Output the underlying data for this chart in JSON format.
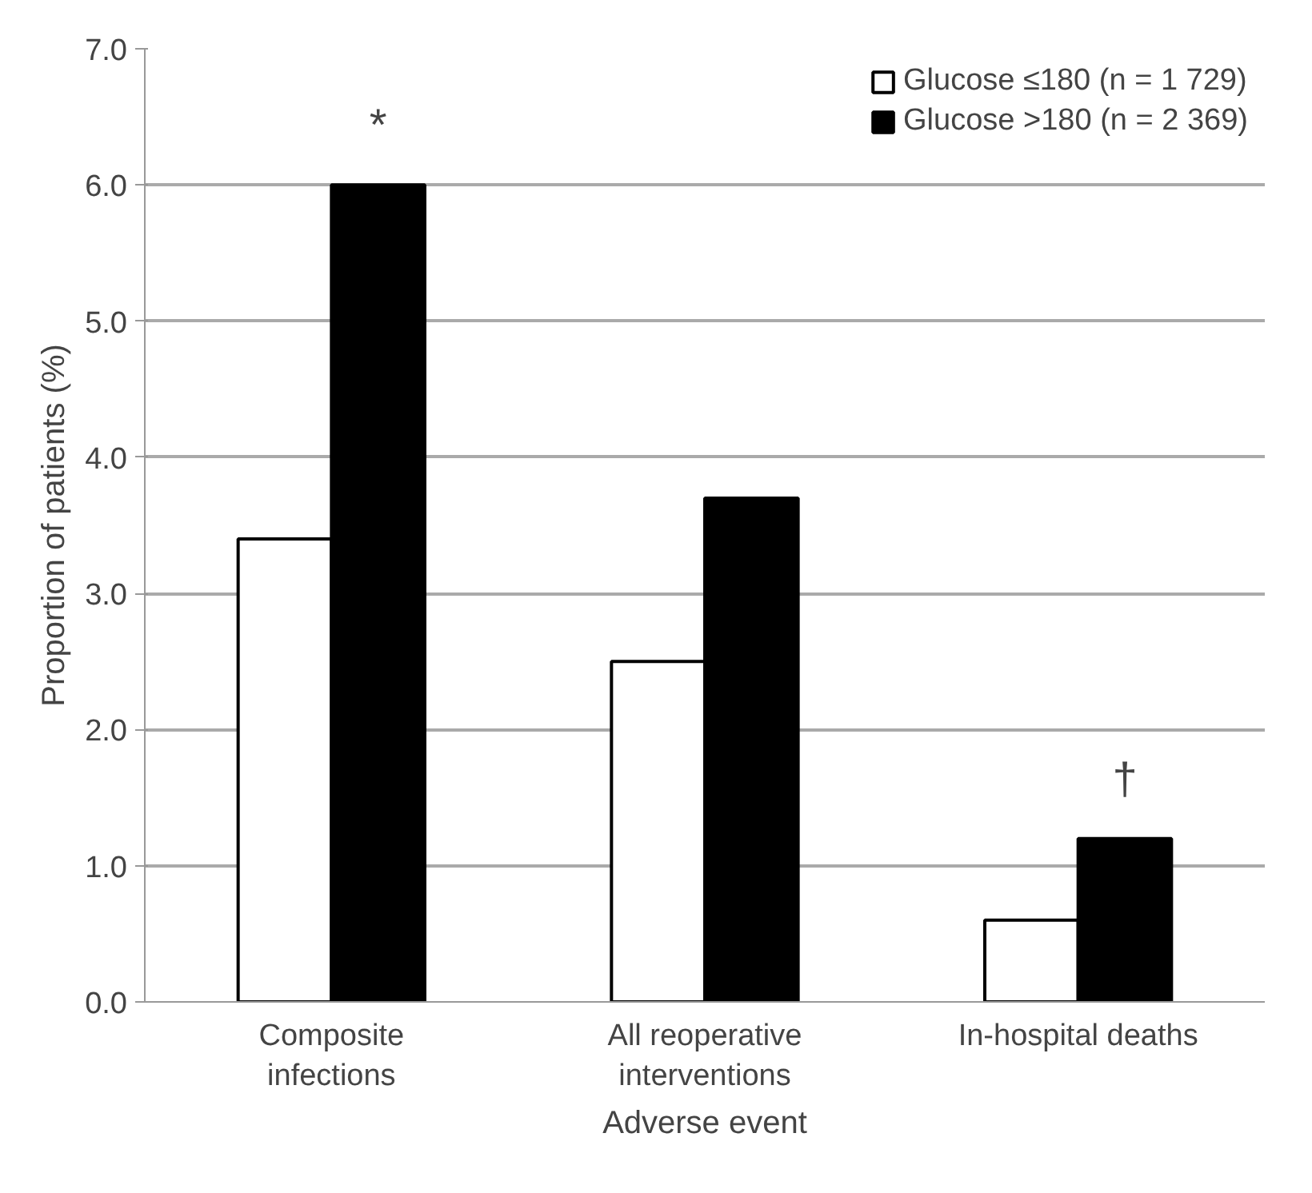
{
  "chart_data": {
    "type": "bar",
    "xlabel": "Adverse event",
    "ylabel": "Proportion of patients (%)",
    "categories": [
      "Composite\ninfections",
      "All reoperative\ninterventions",
      "In-hospital deaths"
    ],
    "series": [
      {
        "name": "Glucose ≤180 (n = 1 729)",
        "color": "#ffffff",
        "values": [
          3.4,
          2.5,
          0.6
        ]
      },
      {
        "name": "Glucose >180 (n = 2 369)",
        "color": "#000000",
        "values": [
          6.0,
          3.7,
          1.2
        ]
      }
    ],
    "ylim": [
      0,
      7
    ],
    "yticks": [
      {
        "value": 0,
        "label": "0.0"
      },
      {
        "value": 1,
        "label": "1.0"
      },
      {
        "value": 2,
        "label": "2.0"
      },
      {
        "value": 3,
        "label": "3.0"
      },
      {
        "value": 4,
        "label": "4.0"
      },
      {
        "value": 5,
        "label": "5.0"
      },
      {
        "value": 6,
        "label": "6.0"
      },
      {
        "value": 7,
        "label": "7.0"
      }
    ],
    "annotations": [
      {
        "text": "*",
        "x": "Composite\ninfections",
        "y": 6.0
      },
      {
        "text": "†",
        "x": "In-hospital deaths",
        "y": 1.2
      }
    ],
    "grid": "y",
    "legend": "top right"
  }
}
